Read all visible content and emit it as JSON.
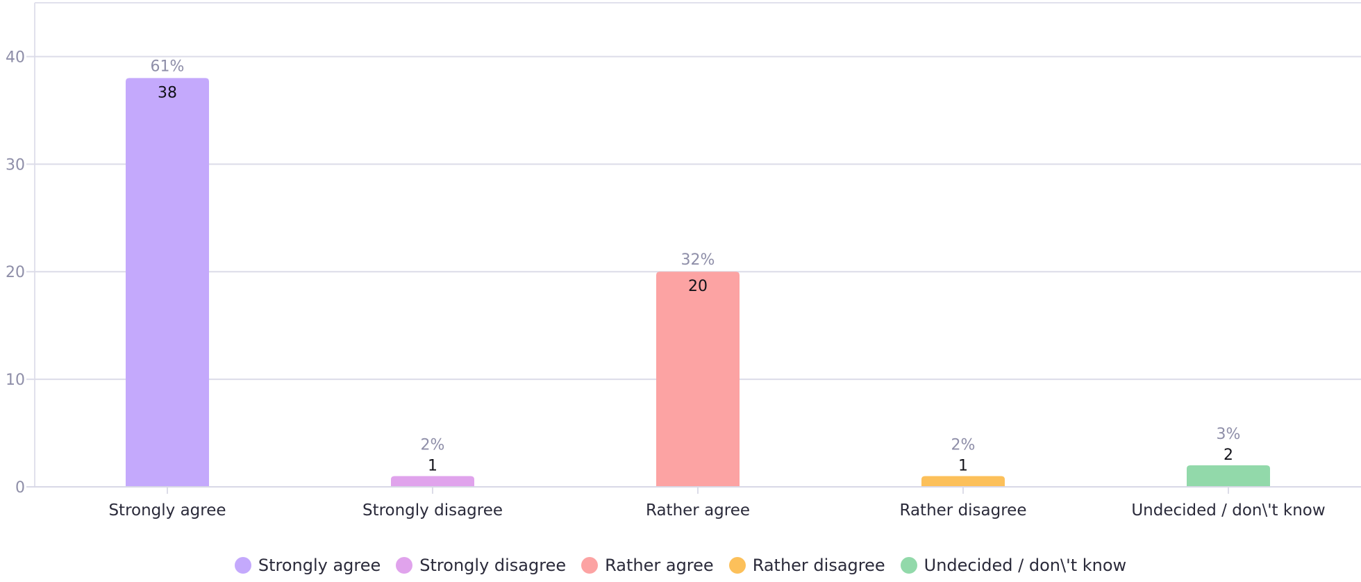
{
  "chart_data": {
    "type": "bar",
    "categories": [
      "Strongly agree",
      "Strongly disagree",
      "Rather agree",
      "Rather disagree",
      "Undecided / don\\'t know"
    ],
    "values": [
      38,
      1,
      20,
      1,
      2
    ],
    "percent_labels": [
      "61%",
      "2%",
      "32%",
      "2%",
      "3%"
    ],
    "colors": [
      "#c4a9fc",
      "#e0a3ec",
      "#fca3a3",
      "#fcc05a",
      "#92d9aa"
    ],
    "ylim": [
      0,
      45
    ],
    "yticks": [
      0,
      10,
      20,
      30,
      40
    ],
    "grid": true,
    "legend_position": "bottom"
  }
}
